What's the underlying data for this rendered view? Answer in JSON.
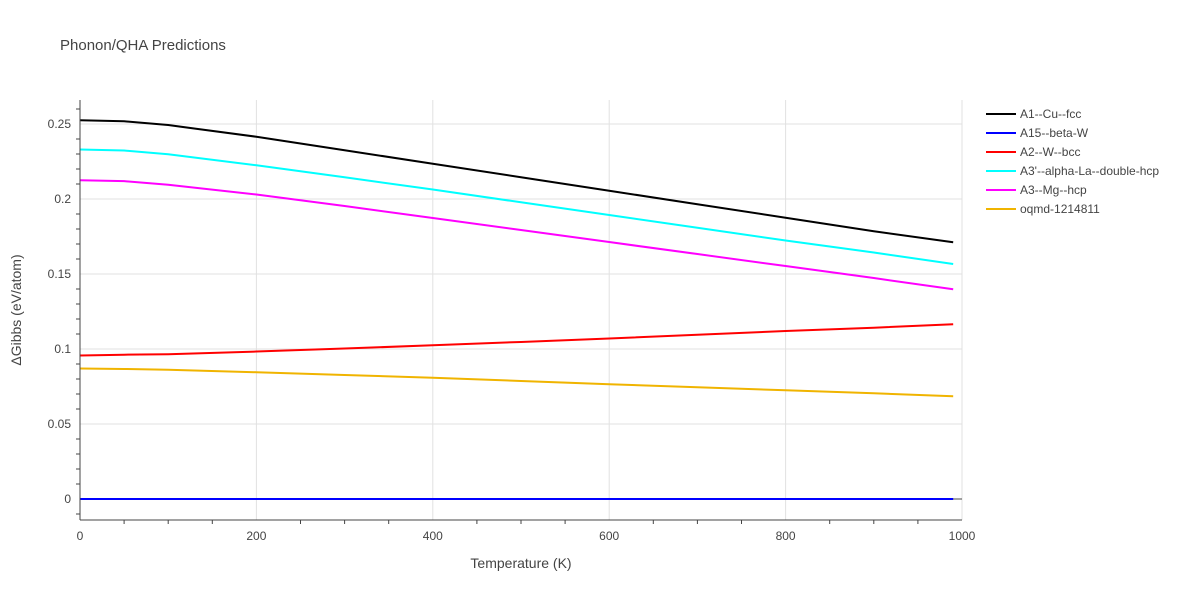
{
  "chart_data": {
    "type": "line",
    "title": "Phonon/QHA Predictions",
    "xlabel": "Temperature (K)",
    "ylabel": "ΔGibbs (eV/atom)",
    "xlim": [
      0,
      1000
    ],
    "ylim": [
      -0.014,
      0.266
    ],
    "x_ticks": [
      0,
      200,
      400,
      600,
      800,
      1000
    ],
    "x_tick_labels": [
      "0",
      "200",
      "400",
      "600",
      "800",
      "1000"
    ],
    "y_ticks": [
      0,
      0.05,
      0.1,
      0.15,
      0.2,
      0.25
    ],
    "y_tick_labels": [
      "0",
      "0.05",
      "0.1",
      "0.15",
      "0.2",
      "0.25"
    ],
    "grid": true,
    "legend_position": "right",
    "x": [
      0,
      50,
      100,
      200,
      300,
      400,
      500,
      600,
      700,
      800,
      900,
      990
    ],
    "series": [
      {
        "name": "A1--Cu--fcc",
        "color": "#000000",
        "values": [
          0.2525,
          0.2518,
          0.2493,
          0.2415,
          0.2325,
          0.2235,
          0.2145,
          0.2055,
          0.1965,
          0.1875,
          0.1785,
          0.1712
        ]
      },
      {
        "name": "A15--beta-W",
        "color": "#0000ff",
        "values": [
          0,
          0,
          0,
          0,
          0,
          0,
          0,
          0,
          0,
          0,
          0,
          0
        ]
      },
      {
        "name": "A2--W--bcc",
        "color": "#ff0000",
        "values": [
          0.0957,
          0.0962,
          0.0965,
          0.0983,
          0.1003,
          0.1025,
          0.1047,
          0.107,
          0.1095,
          0.112,
          0.1142,
          0.1165
        ]
      },
      {
        "name": "A3'--alpha-La--double-hcp",
        "color": "#00ffff",
        "values": [
          0.233,
          0.2323,
          0.2298,
          0.2225,
          0.2145,
          0.2063,
          0.1978,
          0.1893,
          0.1808,
          0.1723,
          0.1643,
          0.1567
        ]
      },
      {
        "name": "A3--Mg--hcp",
        "color": "#ff00ff",
        "values": [
          0.2125,
          0.2119,
          0.2095,
          0.203,
          0.1953,
          0.1873,
          0.1793,
          0.1713,
          0.1633,
          0.1553,
          0.1473,
          0.1398
        ]
      },
      {
        "name": "oqmd-1214811",
        "color": "#f0b400",
        "values": [
          0.087,
          0.0867,
          0.0862,
          0.0845,
          0.0827,
          0.0808,
          0.0787,
          0.0765,
          0.0745,
          0.0725,
          0.0705,
          0.0685
        ]
      }
    ]
  }
}
